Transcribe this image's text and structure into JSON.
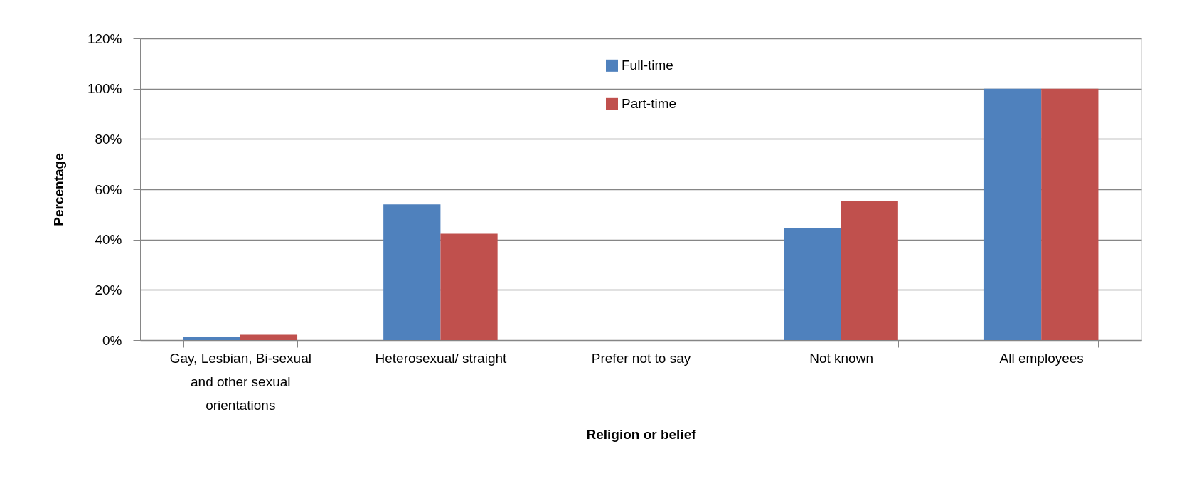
{
  "chart_data": {
    "type": "bar",
    "xlabel": "Religion or belief",
    "ylabel": "Percentage",
    "categories": [
      "Gay, Lesbian, Bi-sexual and other sexual orientations",
      "Heterosexual/ straight",
      "Prefer not to say",
      "Not known",
      "All employees"
    ],
    "series": [
      {
        "name": "Full-time",
        "color": "#4f81bd",
        "values": [
          1.1,
          54.0,
          0,
          44.5,
          100
        ]
      },
      {
        "name": "Part-time",
        "color": "#c0504d",
        "values": [
          2.1,
          42.3,
          0,
          55.3,
          100
        ]
      }
    ],
    "ylim": [
      0,
      120
    ],
    "yticks": [
      {
        "value": 0,
        "label": "0%"
      },
      {
        "value": 20,
        "label": "20%"
      },
      {
        "value": 40,
        "label": "40%"
      },
      {
        "value": 60,
        "label": "60%"
      },
      {
        "value": 80,
        "label": "80%"
      },
      {
        "value": 100,
        "label": "100%"
      },
      {
        "value": 120,
        "label": "120%"
      }
    ],
    "grid": "y",
    "legend": "top"
  }
}
